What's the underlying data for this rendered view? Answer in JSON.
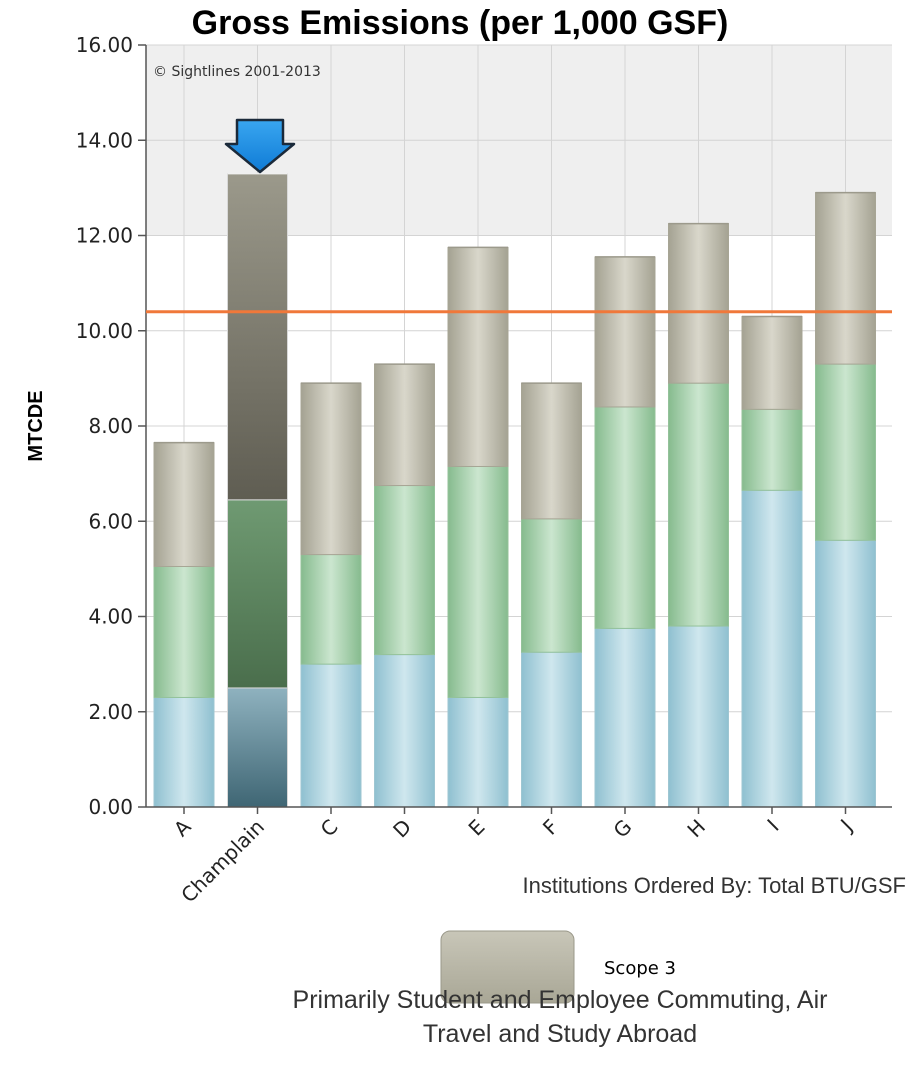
{
  "chart_data": {
    "type": "bar",
    "stacked": true,
    "title": "Gross Emissions (per 1,000 GSF)",
    "ylabel": "MTCDE",
    "xlabel": "Institutions Ordered By: Total BTU/GSF",
    "copyright": "© Sightlines 2001-2013",
    "ylim": [
      0,
      16
    ],
    "yticks": [
      "0.00",
      "2.00",
      "4.00",
      "6.00",
      "8.00",
      "10.00",
      "12.00",
      "14.00",
      "16.00"
    ],
    "categories": [
      "A",
      "Champlain",
      "C",
      "D",
      "E",
      "F",
      "G",
      "H",
      "I",
      "J"
    ],
    "highlight_category": "Champlain",
    "series": [
      {
        "values": [
          2.3,
          2.5,
          3.0,
          3.2,
          2.3,
          3.25,
          3.75,
          3.8,
          6.65,
          5.6
        ],
        "color": "#a9d2de"
      },
      {
        "values": [
          2.75,
          3.95,
          2.3,
          3.55,
          4.85,
          2.8,
          4.65,
          5.1,
          1.7,
          3.7
        ],
        "color": "#9cc9a2"
      },
      {
        "name": "Scope 3",
        "values": [
          2.6,
          6.85,
          3.6,
          2.55,
          4.6,
          2.85,
          3.15,
          3.35,
          1.95,
          3.6
        ],
        "color": "#b5b3a3"
      }
    ],
    "reference_line": {
      "value": 10.4,
      "color": "#f0783a"
    },
    "grid": true,
    "legend": {
      "position": "bottom",
      "entries": [
        "Scope 3"
      ]
    },
    "caption": [
      "Primarily Student and Employee Commuting, Air",
      "Travel and Study Abroad"
    ]
  }
}
